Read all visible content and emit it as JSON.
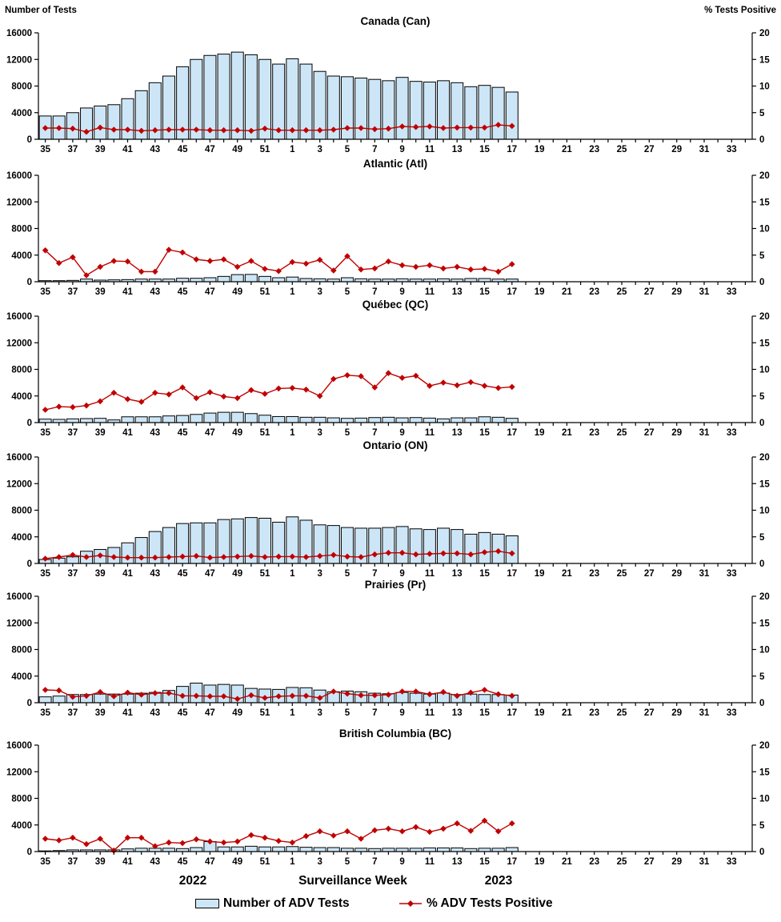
{
  "colors": {
    "bar_fill": "#CDE6F7",
    "bar_stroke": "#000000",
    "line": "#C00000",
    "text": "#000000",
    "background": "#FFFFFF"
  },
  "axes": {
    "left_title": "Number of Tests",
    "right_title": "% Tests Positive",
    "left_ticks": [
      0,
      4000,
      8000,
      12000,
      16000
    ],
    "right_ticks": [
      0,
      5,
      10,
      15,
      20
    ],
    "ylim_left": [
      0,
      16000
    ],
    "ylim_right": [
      0,
      20
    ],
    "weeks": [
      35,
      36,
      37,
      38,
      39,
      40,
      41,
      42,
      43,
      44,
      45,
      46,
      47,
      48,
      49,
      50,
      51,
      52,
      1,
      2,
      3,
      4,
      5,
      6,
      7,
      8,
      9,
      10,
      11,
      12,
      13,
      14,
      15,
      16,
      17,
      18,
      19,
      20,
      21,
      22,
      23,
      24,
      25,
      26,
      27,
      28,
      29,
      30,
      31,
      32,
      33,
      34
    ],
    "data_weeks": [
      35,
      36,
      37,
      38,
      39,
      40,
      41,
      42,
      43,
      44,
      45,
      46,
      47,
      48,
      49,
      50,
      51,
      52,
      1,
      2,
      3,
      4,
      5,
      6,
      7,
      8,
      9,
      10,
      11,
      12,
      13,
      14,
      15,
      16,
      17
    ]
  },
  "footer": {
    "year_left": "2022",
    "x_axis_title": "Surveillance Week",
    "year_right": "2023",
    "legend": [
      {
        "label": "Number of ADV Tests",
        "type": "bar"
      },
      {
        "label": "% ADV Tests Positive",
        "type": "line"
      }
    ]
  },
  "chart_data": [
    {
      "type": "combo-bar-line",
      "id": "can",
      "title": "Canada (Can)",
      "series": [
        {
          "name": "Number of ADV Tests",
          "axis": "left",
          "values": [
            3500,
            3500,
            4000,
            4700,
            5000,
            5200,
            6100,
            7300,
            8500,
            9500,
            10900,
            12000,
            12600,
            12800,
            13100,
            12700,
            12000,
            11300,
            12100,
            11300,
            10200,
            9500,
            9400,
            9200,
            9000,
            8800,
            9300,
            8700,
            8600,
            8800,
            8500,
            7900,
            8100,
            7800,
            7100
          ]
        },
        {
          "name": "% ADV Tests Positive",
          "axis": "right",
          "values": [
            2.1,
            2.1,
            2.0,
            1.4,
            2.2,
            1.8,
            1.8,
            1.6,
            1.7,
            1.8,
            1.8,
            1.8,
            1.7,
            1.7,
            1.7,
            1.6,
            2.0,
            1.7,
            1.7,
            1.7,
            1.7,
            1.8,
            2.1,
            2.1,
            1.9,
            2.0,
            2.4,
            2.3,
            2.4,
            2.1,
            2.2,
            2.2,
            2.2,
            2.7,
            2.5
          ]
        }
      ]
    },
    {
      "type": "combo-bar-line",
      "id": "atl",
      "title": "Atlantic (Atl)",
      "series": [
        {
          "name": "Number of ADV Tests",
          "axis": "left",
          "values": [
            160,
            160,
            200,
            400,
            240,
            280,
            320,
            400,
            400,
            400,
            520,
            520,
            600,
            800,
            1070,
            1100,
            800,
            600,
            700,
            480,
            440,
            400,
            600,
            440,
            400,
            400,
            440,
            400,
            400,
            440,
            400,
            480,
            480,
            400,
            400
          ]
        },
        {
          "name": "% ADV Tests Positive",
          "axis": "right",
          "values": [
            5.9,
            3.5,
            4.6,
            1.2,
            2.8,
            3.9,
            3.8,
            1.9,
            1.9,
            6.0,
            5.5,
            4.2,
            3.9,
            4.2,
            2.8,
            3.9,
            2.4,
            2.0,
            3.7,
            3.4,
            4.1,
            2.1,
            4.8,
            2.3,
            2.5,
            3.8,
            3.1,
            2.8,
            3.1,
            2.5,
            2.8,
            2.3,
            2.4,
            1.9,
            3.3
          ]
        }
      ]
    },
    {
      "type": "combo-bar-line",
      "id": "qc",
      "title": "Québec (QC)",
      "series": [
        {
          "name": "Number of ADV Tests",
          "axis": "left",
          "values": [
            520,
            480,
            560,
            600,
            640,
            400,
            870,
            870,
            870,
            1000,
            1070,
            1230,
            1430,
            1550,
            1550,
            1350,
            1110,
            910,
            910,
            800,
            800,
            715,
            640,
            675,
            755,
            800,
            715,
            755,
            675,
            560,
            715,
            715,
            870,
            800,
            640
          ]
        },
        {
          "name": "% ADV Tests Positive",
          "axis": "right",
          "values": [
            2.4,
            3.0,
            2.9,
            3.2,
            4.0,
            5.6,
            4.4,
            3.9,
            5.6,
            5.3,
            6.6,
            4.6,
            5.7,
            4.9,
            4.6,
            6.1,
            5.4,
            6.4,
            6.5,
            6.2,
            5.0,
            8.2,
            8.9,
            8.7,
            6.6,
            9.3,
            8.4,
            8.8,
            6.9,
            7.5,
            7.0,
            7.6,
            6.9,
            6.5,
            6.7
          ]
        }
      ]
    },
    {
      "type": "combo-bar-line",
      "id": "on",
      "title": "Ontario (ON)",
      "series": [
        {
          "name": "Number of ADV Tests",
          "axis": "left",
          "values": [
            600,
            800,
            1000,
            1840,
            2100,
            2400,
            3100,
            3900,
            4800,
            5400,
            6000,
            6100,
            6100,
            6600,
            6700,
            6900,
            6800,
            6200,
            7000,
            6500,
            5800,
            5700,
            5400,
            5300,
            5300,
            5400,
            5550,
            5200,
            5100,
            5300,
            5100,
            4400,
            4650,
            4400,
            4150
          ]
        },
        {
          "name": "% ADV Tests Positive",
          "axis": "right",
          "values": [
            0.9,
            1.2,
            1.6,
            1.2,
            1.5,
            1.2,
            1.1,
            1.1,
            1.1,
            1.2,
            1.3,
            1.4,
            1.1,
            1.2,
            1.3,
            1.4,
            1.2,
            1.3,
            1.3,
            1.2,
            1.4,
            1.6,
            1.3,
            1.2,
            1.7,
            2.0,
            2.0,
            1.7,
            1.8,
            1.9,
            1.9,
            1.7,
            2.1,
            2.3,
            1.9
          ]
        }
      ]
    },
    {
      "type": "combo-bar-line",
      "id": "pr",
      "title": "Prairies (Pr)",
      "series": [
        {
          "name": "Number of ADV Tests",
          "axis": "left",
          "values": [
            880,
            1000,
            1230,
            1230,
            1300,
            1300,
            1300,
            1430,
            1550,
            1840,
            2450,
            2940,
            2650,
            2750,
            2650,
            2150,
            2050,
            2000,
            2290,
            2250,
            1900,
            1650,
            1750,
            1650,
            1430,
            1350,
            1550,
            1430,
            1300,
            1450,
            1230,
            1300,
            1230,
            1230,
            1150
          ]
        },
        {
          "name": "% ADV Tests Positive",
          "axis": "right",
          "values": [
            2.4,
            2.3,
            1.1,
            1.3,
            2.0,
            1.2,
            1.9,
            1.5,
            1.8,
            1.8,
            1.3,
            1.3,
            1.2,
            1.2,
            0.7,
            1.4,
            0.9,
            1.2,
            1.3,
            1.3,
            0.9,
            2.1,
            1.7,
            1.4,
            1.4,
            1.5,
            2.1,
            2.1,
            1.6,
            2.0,
            1.3,
            1.9,
            2.4,
            1.6,
            1.3
          ]
        }
      ]
    },
    {
      "type": "combo-bar-line",
      "id": "bc",
      "title": "British Columbia (BC)",
      "series": [
        {
          "name": "Number of ADV Tests",
          "axis": "left",
          "values": [
            100,
            150,
            250,
            250,
            250,
            250,
            400,
            500,
            500,
            500,
            450,
            600,
            1500,
            700,
            700,
            800,
            700,
            700,
            750,
            650,
            600,
            600,
            500,
            500,
            450,
            500,
            500,
            500,
            550,
            550,
            550,
            450,
            500,
            500,
            600
          ]
        },
        {
          "name": "% ADV Tests Positive",
          "axis": "right",
          "values": [
            2.4,
            2.1,
            2.6,
            1.4,
            2.4,
            0.2,
            2.6,
            2.6,
            1.0,
            1.7,
            1.6,
            2.3,
            1.9,
            1.7,
            1.9,
            3.1,
            2.6,
            2.0,
            1.7,
            2.9,
            3.8,
            3.0,
            3.8,
            2.4,
            4.0,
            4.3,
            3.8,
            4.6,
            3.7,
            4.3,
            5.3,
            3.9,
            5.8,
            3.8,
            5.3
          ]
        }
      ]
    }
  ]
}
